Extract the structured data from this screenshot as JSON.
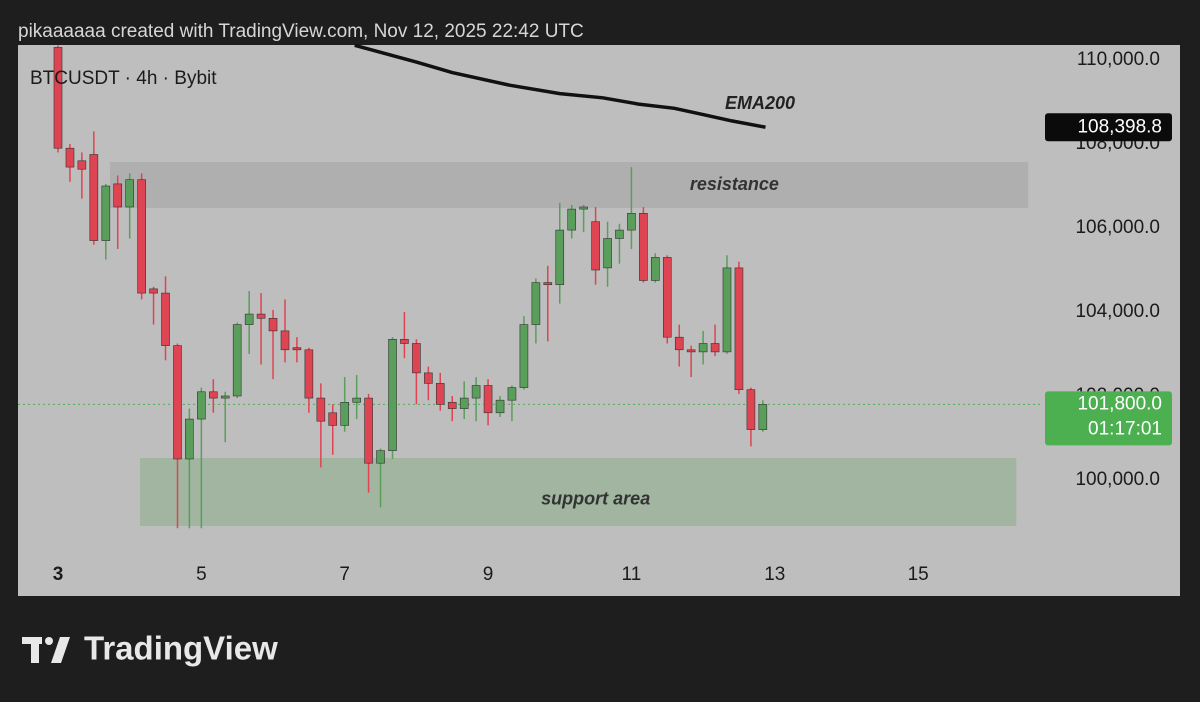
{
  "attribution": "pikaaaaaa created with TradingView.com, Nov 12, 2025 22:42 UTC",
  "logo": "TradingView",
  "chart_data": {
    "type": "candlestick",
    "title": "BTCUSDT · 4h · Bybit",
    "x": [
      3,
      3.167,
      3.333,
      3.5,
      3.667,
      3.833,
      4,
      4.167,
      4.333,
      4.5,
      4.667,
      4.833,
      5,
      5.167,
      5.333,
      5.5,
      5.667,
      5.833,
      6,
      6.167,
      6.333,
      6.5,
      6.667,
      6.833,
      7,
      7.167,
      7.333,
      7.5,
      7.667,
      7.833,
      8,
      8.167,
      8.333,
      8.5,
      8.667,
      8.833,
      9,
      9.167,
      9.333,
      9.5,
      9.667,
      9.833,
      10,
      10.167,
      10.333,
      10.5,
      10.667,
      10.833,
      11,
      11.167,
      11.333,
      11.5,
      11.667,
      11.833,
      12,
      12.167,
      12.333,
      12.5,
      12.667,
      12.833
    ],
    "open": [
      110300,
      107900,
      107600,
      107750,
      105700,
      107050,
      106500,
      107150,
      104550,
      104450,
      103200,
      100500,
      101450,
      102100,
      101950,
      102000,
      103700,
      103950,
      103850,
      103550,
      103150,
      103100,
      101950,
      101600,
      101300,
      101850,
      101950,
      100400,
      100700,
      103350,
      103250,
      102550,
      102300,
      101850,
      101700,
      101950,
      102250,
      101600,
      101900,
      102200,
      103700,
      104700,
      104650,
      105950,
      106450,
      106150,
      105050,
      105750,
      105950,
      106350,
      104750,
      105300,
      103400,
      103100,
      103050,
      103250,
      103050,
      105050,
      102150,
      101200
    ],
    "high": [
      110350,
      108000,
      107800,
      108300,
      107050,
      107250,
      107300,
      107300,
      104600,
      104850,
      103250,
      101700,
      102200,
      102400,
      102100,
      103750,
      104500,
      104450,
      104050,
      104300,
      103400,
      103150,
      102300,
      101800,
      102450,
      102500,
      102050,
      100750,
      103400,
      104000,
      103350,
      102700,
      102550,
      102000,
      102350,
      102450,
      102400,
      102000,
      102250,
      103900,
      104800,
      105100,
      106600,
      106550,
      106550,
      106500,
      106150,
      106100,
      107450,
      106500,
      105400,
      105350,
      103700,
      103200,
      103550,
      103700,
      105350,
      105200,
      102200,
      101900
    ],
    "low": [
      107800,
      107100,
      106700,
      105600,
      105250,
      105500,
      105750,
      104300,
      103700,
      102850,
      98850,
      98850,
      98850,
      101600,
      100900,
      101950,
      103000,
      102750,
      102400,
      102800,
      102800,
      101600,
      100300,
      100600,
      101150,
      101450,
      99700,
      99350,
      100500,
      102900,
      101800,
      101900,
      101650,
      101400,
      101450,
      101400,
      101300,
      101500,
      101400,
      102150,
      103250,
      103300,
      104200,
      105750,
      105900,
      104650,
      104600,
      105150,
      105500,
      104700,
      104700,
      103250,
      102700,
      102450,
      102750,
      102950,
      103000,
      102050,
      100800,
      101150
    ],
    "close": [
      107900,
      107450,
      107400,
      105700,
      107000,
      106500,
      107150,
      104450,
      104450,
      103200,
      100500,
      101450,
      102100,
      101950,
      102000,
      103700,
      103950,
      103850,
      103550,
      103100,
      103100,
      101950,
      101400,
      101300,
      101850,
      101950,
      100400,
      100700,
      103350,
      103250,
      102550,
      102300,
      101800,
      101700,
      101950,
      102250,
      101600,
      101900,
      102200,
      103700,
      104700,
      104650,
      105950,
      106450,
      106500,
      105000,
      105750,
      105950,
      106350,
      104750,
      105300,
      103400,
      103100,
      103050,
      103250,
      103050,
      105050,
      102150,
      101200,
      101800
    ],
    "up_color": "#5a9e5c",
    "down_color": "#df4452",
    "xlim": [
      2.442,
      16.7
    ],
    "xticks": [
      3,
      5,
      7,
      9,
      11,
      13,
      15
    ],
    "ylim": [
      98214,
      110357
    ],
    "yticks": [
      {
        "value": 100000,
        "label": "100,000.0"
      },
      {
        "value": 102000,
        "label": "102,000.0"
      },
      {
        "value": 104000,
        "label": "104,000.0"
      },
      {
        "value": 106000,
        "label": "106,000.0"
      },
      {
        "value": 108000,
        "label": "108,000.0"
      },
      {
        "value": 110000,
        "label": "110,000.0"
      }
    ],
    "ema": {
      "name": "EMA200",
      "color": "#111111",
      "x": [
        7.14,
        8.0,
        8.5,
        9.3,
        10.0,
        10.6,
        11.1,
        11.6,
        12.0,
        12.4,
        12.87
      ],
      "values": [
        110350,
        109950,
        109700,
        109400,
        109200,
        109100,
        108950,
        108850,
        108700,
        108550,
        108398.8
      ],
      "last_label": "108,398.8"
    },
    "zones": [
      {
        "label": "resistance",
        "top": 107571,
        "bottom": 106476,
        "x0": 3.726,
        "x1": 16.535,
        "color": "#a9a9a9"
      },
      {
        "label": "support area",
        "top": 100524,
        "bottom": 98905,
        "x0": 4.144,
        "x1": 16.37,
        "color": "#97b197"
      }
    ],
    "last_price": {
      "value": 101800,
      "label": "101,800.0",
      "countdown": "01:17:01",
      "color": "#4caf50"
    }
  }
}
